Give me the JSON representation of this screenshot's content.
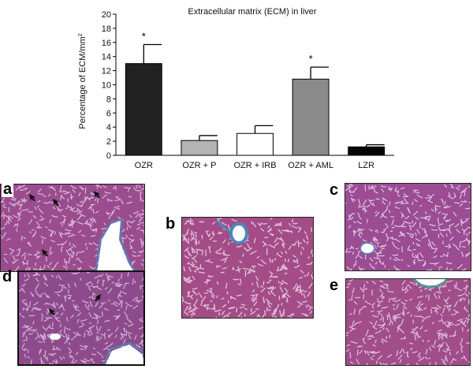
{
  "chart_data": {
    "type": "bar",
    "title": "Extracellular matrix (ECM) in liver",
    "ylabel": "Percentage of ECM/mm²",
    "ylabel_main": "Percentage of ECM/mm",
    "ylabel_sup": "2",
    "xlabel": "",
    "ylim": [
      0,
      20
    ],
    "yticks": [
      "0",
      "2",
      "4",
      "6",
      "8",
      "10",
      "12",
      "14",
      "16",
      "18",
      "20"
    ],
    "categories": [
      "OZR",
      "OZR + P",
      "OZR + IRB",
      "OZR + AML",
      "LZR"
    ],
    "values": [
      13.0,
      2.1,
      3.1,
      10.8,
      1.2
    ],
    "errors": [
      2.7,
      0.7,
      1.1,
      1.7,
      0.3
    ],
    "significance": [
      "*",
      "",
      "",
      "*",
      ""
    ],
    "bar_colors": [
      "#222222",
      "#b4b4b4",
      "#ffffff",
      "#8a8a8a",
      "#050505"
    ],
    "grid": false
  },
  "panels": {
    "a": "a",
    "b": "b",
    "c": "c",
    "d": "d",
    "e": "e"
  },
  "colors": {
    "tissue": "#a04f8f",
    "tissue_dark": "#7a3a78",
    "sinusoid": "#e9d8ea",
    "collagen": "#4a86b8",
    "lumen": "#ffffff"
  }
}
